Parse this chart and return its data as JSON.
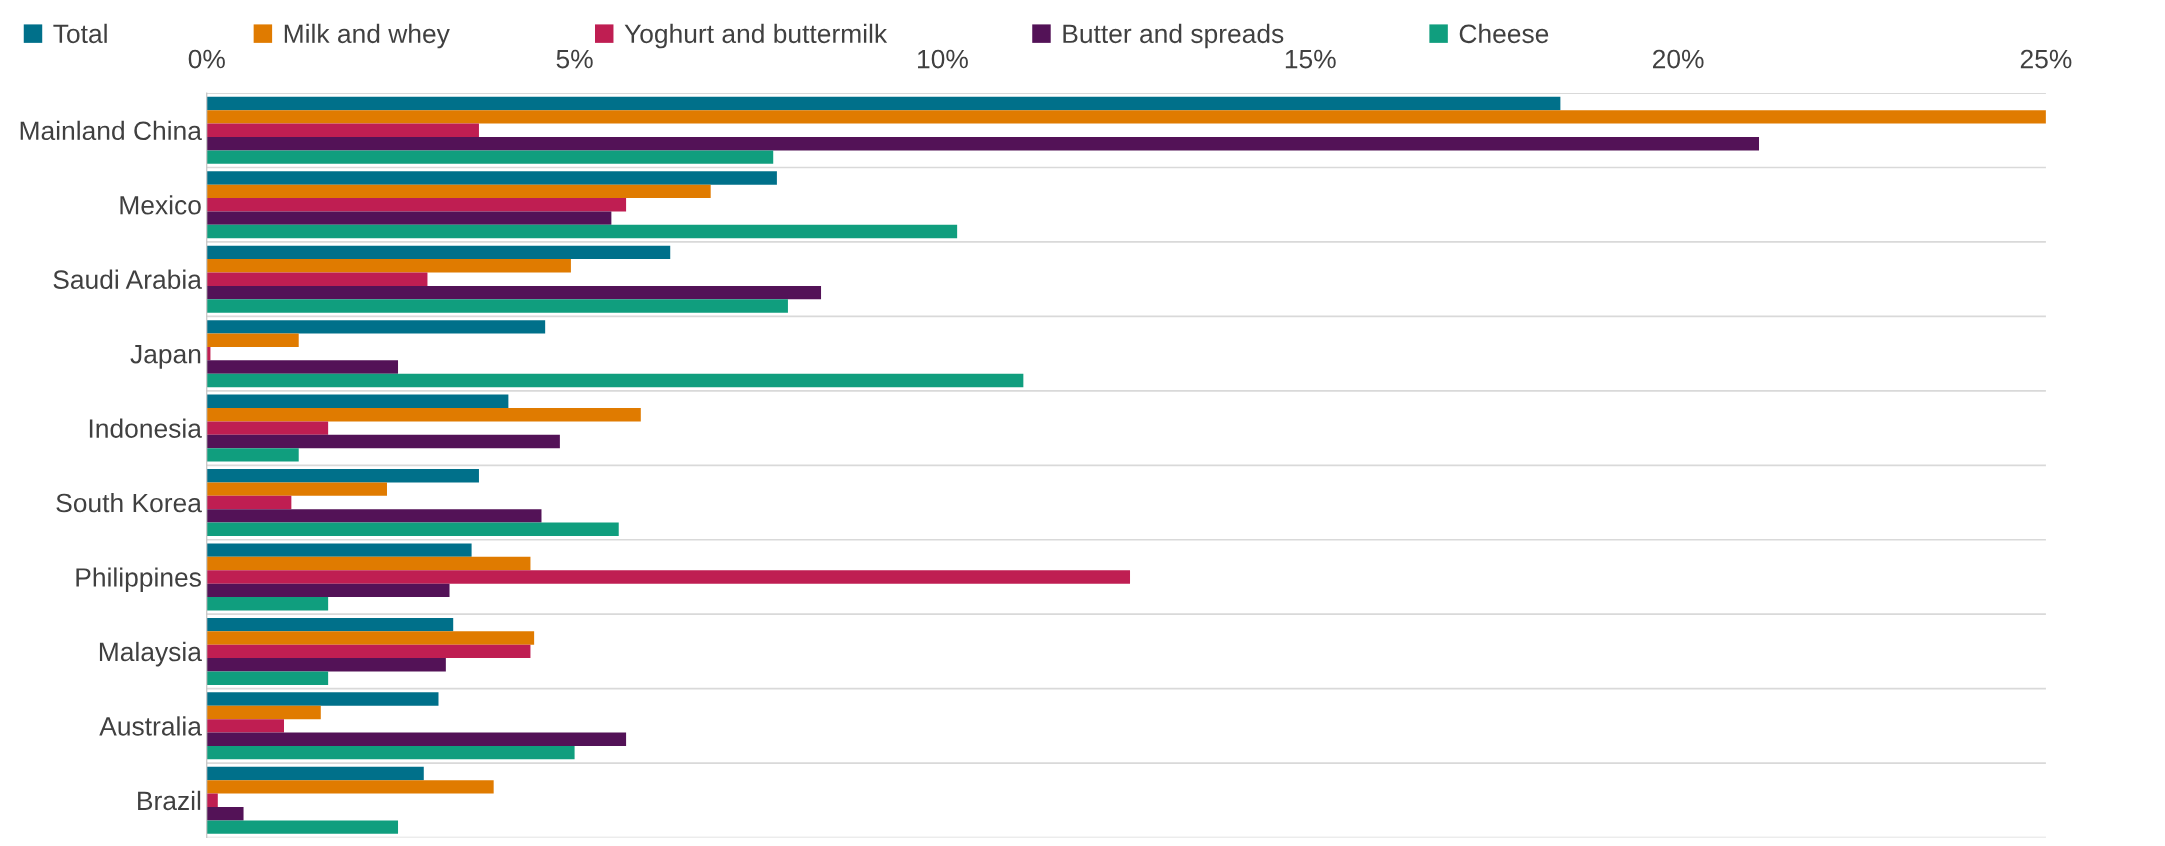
{
  "chart_data": {
    "type": "bar",
    "orientation": "horizontal",
    "categories": [
      "Mainland China",
      "Mexico",
      "Saudi Arabia",
      "Japan",
      "Indonesia",
      "South Korea",
      "Philippines",
      "Malaysia",
      "Australia",
      "Brazil"
    ],
    "series": [
      {
        "name": "Total",
        "color": "#00708a",
        "values": [
          18.4,
          7.75,
          6.3,
          4.6,
          4.1,
          3.7,
          3.6,
          3.35,
          3.15,
          2.95
        ]
      },
      {
        "name": "Milk and whey",
        "color": "#e07b00",
        "values": [
          25,
          6.85,
          4.95,
          1.25,
          5.9,
          2.45,
          4.4,
          4.45,
          1.55,
          3.9
        ]
      },
      {
        "name": "Yoghurt and buttermilk",
        "color": "#bf1e52",
        "values": [
          3.7,
          5.7,
          3.0,
          0.05,
          1.65,
          1.15,
          12.55,
          4.4,
          1.05,
          0.15
        ]
      },
      {
        "name": "Butter and spreads",
        "color": "#531257",
        "values": [
          21.1,
          5.5,
          8.35,
          2.6,
          4.8,
          4.55,
          3.3,
          3.25,
          5.7,
          0.5
        ]
      },
      {
        "name": "Cheese",
        "color": "#109e7e",
        "values": [
          7.7,
          10.2,
          7.9,
          11.1,
          1.25,
          5.6,
          1.65,
          1.65,
          5.0,
          2.6
        ]
      }
    ],
    "xlim": [
      0,
      25
    ],
    "xticks": [
      {
        "value": 0,
        "label": "0%"
      },
      {
        "value": 5,
        "label": "5%"
      },
      {
        "value": 10,
        "label": "10%"
      },
      {
        "value": 15,
        "label": "15%"
      },
      {
        "value": 20,
        "label": "20%"
      },
      {
        "value": 25,
        "label": "25%"
      }
    ],
    "grid": "y",
    "legend": "top left"
  }
}
